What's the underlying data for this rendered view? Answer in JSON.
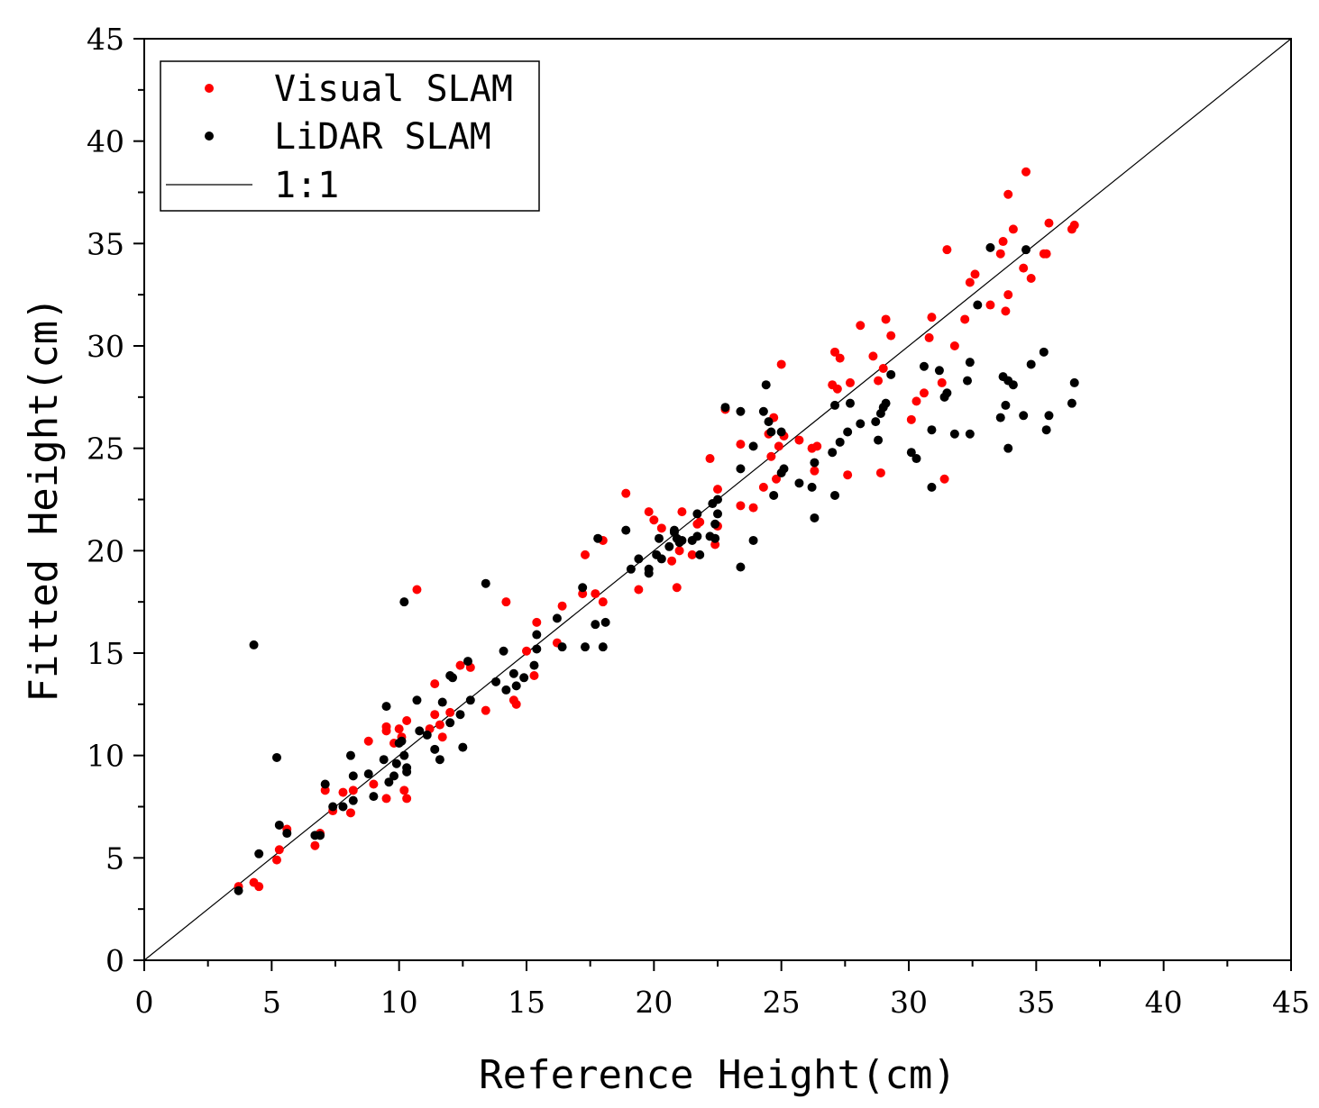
{
  "chart_data": {
    "type": "scatter",
    "title": "",
    "xlabel": "Reference Height(cm)",
    "ylabel": "Fitted Height(cm)",
    "xlim": [
      0,
      45
    ],
    "ylim": [
      0,
      45
    ],
    "xticks": [
      "0",
      "5",
      "10",
      "15",
      "20",
      "25",
      "30",
      "35",
      "40",
      "45"
    ],
    "yticks": [
      "0",
      "5",
      "10",
      "15",
      "20",
      "25",
      "30",
      "35",
      "40",
      "45"
    ],
    "grid": false,
    "legend_position": "top-left",
    "reference_line": {
      "name": "1:1",
      "x": [
        0,
        45
      ],
      "y": [
        0,
        45
      ],
      "color": "#000000"
    },
    "series": [
      {
        "name": "Visual SLAM",
        "color": "#ff0000",
        "points": [
          [
            3.7,
            3.6
          ],
          [
            4.3,
            3.8
          ],
          [
            4.5,
            3.6
          ],
          [
            5.2,
            4.9
          ],
          [
            5.3,
            5.4
          ],
          [
            5.6,
            6.4
          ],
          [
            6.7,
            5.6
          ],
          [
            6.9,
            6.2
          ],
          [
            7.1,
            8.3
          ],
          [
            7.4,
            7.3
          ],
          [
            7.8,
            8.2
          ],
          [
            8.1,
            7.2
          ],
          [
            8.2,
            8.3
          ],
          [
            8.8,
            10.7
          ],
          [
            9.0,
            8.6
          ],
          [
            9.5,
            11.2
          ],
          [
            9.5,
            11.4
          ],
          [
            9.5,
            7.9
          ],
          [
            9.8,
            10.6
          ],
          [
            10.0,
            11.3
          ],
          [
            10.1,
            10.9
          ],
          [
            10.2,
            8.3
          ],
          [
            10.3,
            7.9
          ],
          [
            10.3,
            11.7
          ],
          [
            10.7,
            18.1
          ],
          [
            11.2,
            11.3
          ],
          [
            11.4,
            12.0
          ],
          [
            11.4,
            13.5
          ],
          [
            11.6,
            11.5
          ],
          [
            11.7,
            10.9
          ],
          [
            12.0,
            12.1
          ],
          [
            12.4,
            14.4
          ],
          [
            12.8,
            14.3
          ],
          [
            13.4,
            12.2
          ],
          [
            14.2,
            17.5
          ],
          [
            14.5,
            12.7
          ],
          [
            14.6,
            12.5
          ],
          [
            15.0,
            15.1
          ],
          [
            15.3,
            13.9
          ],
          [
            15.4,
            16.5
          ],
          [
            16.2,
            15.5
          ],
          [
            16.4,
            17.3
          ],
          [
            17.2,
            17.9
          ],
          [
            17.3,
            19.8
          ],
          [
            17.7,
            17.9
          ],
          [
            18.0,
            17.5
          ],
          [
            18.0,
            20.5
          ],
          [
            18.9,
            22.8
          ],
          [
            19.4,
            18.1
          ],
          [
            19.8,
            21.9
          ],
          [
            20.0,
            21.5
          ],
          [
            20.3,
            21.1
          ],
          [
            20.7,
            19.5
          ],
          [
            20.9,
            18.2
          ],
          [
            21.0,
            20.0
          ],
          [
            21.1,
            21.9
          ],
          [
            21.5,
            19.8
          ],
          [
            21.7,
            21.3
          ],
          [
            21.8,
            21.4
          ],
          [
            22.2,
            24.5
          ],
          [
            22.4,
            20.3
          ],
          [
            22.5,
            23.0
          ],
          [
            22.5,
            21.2
          ],
          [
            22.8,
            26.9
          ],
          [
            23.4,
            25.2
          ],
          [
            23.4,
            22.2
          ],
          [
            23.9,
            22.1
          ],
          [
            24.3,
            23.1
          ],
          [
            24.5,
            25.7
          ],
          [
            24.6,
            24.6
          ],
          [
            24.7,
            26.5
          ],
          [
            24.8,
            23.5
          ],
          [
            24.9,
            25.1
          ],
          [
            25.0,
            29.1
          ],
          [
            25.1,
            25.6
          ],
          [
            25.7,
            25.4
          ],
          [
            26.2,
            25.0
          ],
          [
            26.3,
            23.9
          ],
          [
            26.4,
            25.1
          ],
          [
            27.0,
            28.1
          ],
          [
            27.1,
            29.7
          ],
          [
            27.2,
            27.9
          ],
          [
            27.3,
            29.4
          ],
          [
            27.6,
            23.7
          ],
          [
            27.7,
            28.2
          ],
          [
            28.1,
            31.0
          ],
          [
            28.6,
            29.5
          ],
          [
            28.8,
            28.3
          ],
          [
            28.9,
            23.8
          ],
          [
            29.0,
            28.9
          ],
          [
            29.1,
            31.3
          ],
          [
            29.3,
            30.5
          ],
          [
            30.1,
            26.4
          ],
          [
            30.3,
            27.3
          ],
          [
            30.6,
            27.7
          ],
          [
            30.8,
            30.4
          ],
          [
            30.9,
            31.4
          ],
          [
            31.3,
            28.2
          ],
          [
            31.4,
            23.5
          ],
          [
            31.5,
            34.7
          ],
          [
            31.8,
            30.0
          ],
          [
            32.2,
            31.3
          ],
          [
            32.4,
            33.1
          ],
          [
            32.6,
            33.5
          ],
          [
            33.2,
            32.0
          ],
          [
            33.6,
            34.5
          ],
          [
            33.7,
            35.1
          ],
          [
            33.8,
            31.7
          ],
          [
            33.9,
            32.5
          ],
          [
            33.9,
            37.4
          ],
          [
            34.1,
            35.7
          ],
          [
            34.5,
            33.8
          ],
          [
            34.6,
            38.5
          ],
          [
            34.8,
            33.3
          ],
          [
            35.3,
            34.5
          ],
          [
            35.4,
            34.5
          ],
          [
            35.5,
            36.0
          ],
          [
            36.4,
            35.7
          ],
          [
            36.5,
            35.9
          ]
        ]
      },
      {
        "name": "LiDAR SLAM",
        "color": "#000000",
        "points": [
          [
            3.7,
            3.4
          ],
          [
            4.3,
            15.4
          ],
          [
            4.5,
            5.2
          ],
          [
            5.2,
            9.9
          ],
          [
            5.3,
            6.6
          ],
          [
            5.6,
            6.2
          ],
          [
            6.7,
            6.1
          ],
          [
            6.9,
            6.1
          ],
          [
            7.1,
            8.6
          ],
          [
            7.4,
            7.5
          ],
          [
            7.8,
            7.5
          ],
          [
            8.1,
            10.0
          ],
          [
            8.2,
            7.8
          ],
          [
            8.2,
            9.0
          ],
          [
            8.8,
            9.1
          ],
          [
            9.0,
            8.0
          ],
          [
            9.4,
            9.8
          ],
          [
            9.5,
            12.4
          ],
          [
            9.6,
            8.7
          ],
          [
            9.8,
            9.0
          ],
          [
            9.9,
            9.6
          ],
          [
            10.0,
            10.6
          ],
          [
            10.1,
            10.7
          ],
          [
            10.2,
            17.5
          ],
          [
            10.2,
            10.0
          ],
          [
            10.3,
            9.2
          ],
          [
            10.3,
            9.4
          ],
          [
            10.7,
            12.7
          ],
          [
            10.8,
            11.2
          ],
          [
            11.1,
            11.0
          ],
          [
            11.4,
            10.3
          ],
          [
            11.6,
            9.8
          ],
          [
            11.7,
            12.6
          ],
          [
            12.0,
            11.6
          ],
          [
            12.0,
            13.9
          ],
          [
            12.1,
            13.8
          ],
          [
            12.4,
            12.0
          ],
          [
            12.5,
            10.4
          ],
          [
            12.7,
            14.6
          ],
          [
            12.8,
            12.7
          ],
          [
            13.4,
            18.4
          ],
          [
            13.8,
            13.6
          ],
          [
            14.1,
            15.1
          ],
          [
            14.2,
            13.2
          ],
          [
            14.5,
            14.0
          ],
          [
            14.6,
            13.4
          ],
          [
            14.9,
            13.8
          ],
          [
            15.3,
            14.4
          ],
          [
            15.4,
            15.9
          ],
          [
            15.4,
            15.2
          ],
          [
            16.2,
            16.7
          ],
          [
            16.4,
            15.3
          ],
          [
            17.2,
            18.2
          ],
          [
            17.3,
            15.3
          ],
          [
            17.7,
            16.4
          ],
          [
            17.8,
            20.6
          ],
          [
            18.0,
            15.3
          ],
          [
            18.1,
            16.5
          ],
          [
            18.9,
            21.0
          ],
          [
            19.1,
            19.1
          ],
          [
            19.4,
            19.6
          ],
          [
            19.8,
            19.1
          ],
          [
            19.8,
            18.9
          ],
          [
            20.1,
            19.8
          ],
          [
            20.2,
            20.6
          ],
          [
            20.3,
            19.6
          ],
          [
            20.6,
            20.2
          ],
          [
            20.8,
            20.9
          ],
          [
            20.8,
            21.0
          ],
          [
            20.9,
            20.6
          ],
          [
            21.0,
            20.4
          ],
          [
            21.1,
            20.5
          ],
          [
            21.5,
            20.5
          ],
          [
            21.7,
            21.8
          ],
          [
            21.7,
            20.7
          ],
          [
            21.8,
            19.8
          ],
          [
            22.2,
            20.7
          ],
          [
            22.3,
            22.3
          ],
          [
            22.4,
            20.6
          ],
          [
            22.4,
            21.3
          ],
          [
            22.5,
            21.8
          ],
          [
            22.5,
            22.5
          ],
          [
            22.8,
            27.0
          ],
          [
            23.4,
            26.8
          ],
          [
            23.4,
            24.0
          ],
          [
            23.4,
            19.2
          ],
          [
            23.9,
            25.1
          ],
          [
            23.9,
            20.5
          ],
          [
            24.3,
            26.8
          ],
          [
            24.4,
            28.1
          ],
          [
            24.5,
            26.3
          ],
          [
            24.6,
            25.8
          ],
          [
            24.7,
            22.7
          ],
          [
            25.0,
            23.8
          ],
          [
            25.0,
            25.8
          ],
          [
            25.1,
            24.0
          ],
          [
            25.7,
            23.3
          ],
          [
            26.2,
            23.1
          ],
          [
            26.3,
            24.3
          ],
          [
            26.3,
            21.6
          ],
          [
            27.0,
            24.8
          ],
          [
            27.1,
            27.1
          ],
          [
            27.1,
            22.7
          ],
          [
            27.3,
            25.3
          ],
          [
            27.6,
            25.8
          ],
          [
            27.7,
            27.2
          ],
          [
            28.1,
            26.2
          ],
          [
            28.7,
            26.3
          ],
          [
            28.8,
            25.4
          ],
          [
            28.9,
            26.7
          ],
          [
            29.0,
            27.0
          ],
          [
            29.1,
            27.2
          ],
          [
            29.3,
            28.6
          ],
          [
            30.1,
            24.8
          ],
          [
            30.3,
            24.5
          ],
          [
            30.6,
            29.0
          ],
          [
            30.9,
            25.9
          ],
          [
            30.9,
            23.1
          ],
          [
            31.2,
            28.8
          ],
          [
            31.4,
            27.5
          ],
          [
            31.5,
            27.7
          ],
          [
            31.8,
            25.7
          ],
          [
            32.3,
            28.3
          ],
          [
            32.4,
            29.2
          ],
          [
            32.4,
            25.7
          ],
          [
            32.7,
            32.0
          ],
          [
            33.2,
            34.8
          ],
          [
            33.6,
            26.5
          ],
          [
            33.7,
            28.5
          ],
          [
            33.8,
            27.1
          ],
          [
            33.9,
            28.3
          ],
          [
            33.9,
            25.0
          ],
          [
            34.1,
            28.1
          ],
          [
            34.5,
            26.6
          ],
          [
            34.6,
            34.7
          ],
          [
            34.8,
            29.1
          ],
          [
            35.3,
            29.7
          ],
          [
            35.4,
            25.9
          ],
          [
            35.5,
            26.6
          ],
          [
            36.4,
            27.2
          ],
          [
            36.5,
            28.2
          ]
        ]
      }
    ]
  }
}
